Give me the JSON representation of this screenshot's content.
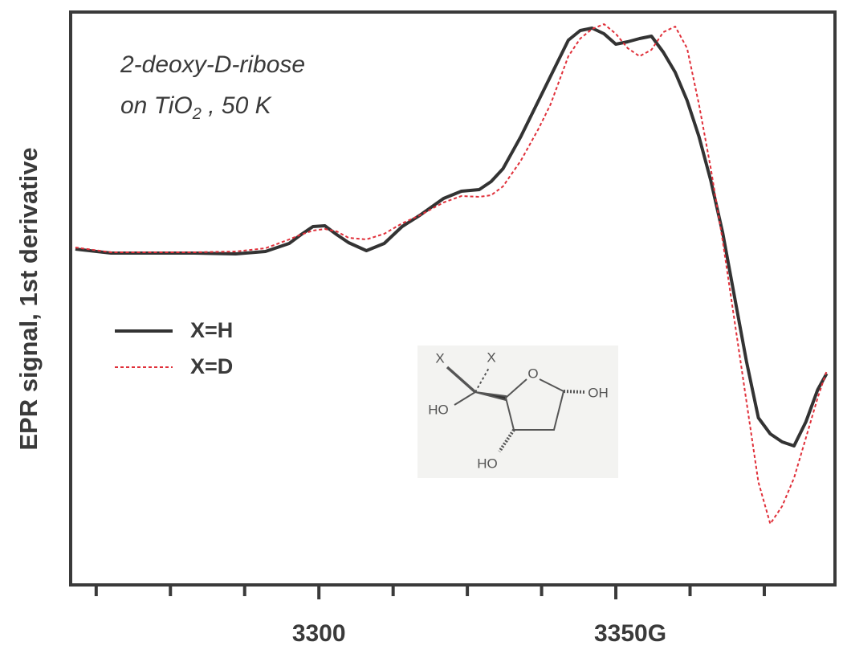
{
  "chart_data": {
    "type": "line",
    "y_label": "EPR signal, 1st derivative",
    "annotation": {
      "line1": "2-deoxy-D-ribose",
      "line2": [
        "on TiO",
        "2",
        " , 50 K"
      ]
    },
    "structure_labels": [
      "X",
      "X",
      "HO",
      "O",
      "OH",
      "HO"
    ],
    "xlim": [
      3258.2,
      3386.9
    ],
    "xticks": [
      3300,
      {
        "value": 3350,
        "label": "3350G"
      }
    ],
    "xminor_ticks": [
      3262.5,
      3275,
      3287.5,
      3312.5,
      3325,
      3337.5,
      3362.5,
      3375
    ],
    "ylim": [
      0,
      713
    ],
    "legend": "left",
    "series": [
      {
        "name": "X=H",
        "color": "#333333",
        "x": [
          3259,
          3265,
          3272,
          3279,
          3286,
          3291,
          3295,
          3297,
          3299,
          3301,
          3303,
          3305,
          3308,
          3311,
          3314,
          3317,
          3321,
          3324,
          3327,
          3329,
          3331,
          3334,
          3337,
          3339,
          3342,
          3344,
          3346,
          3348,
          3350,
          3352,
          3354,
          3356,
          3358,
          3360,
          3362,
          3364,
          3366,
          3368,
          3370,
          3372,
          3374,
          3376,
          3378,
          3380,
          3382,
          3384,
          3385.5
        ],
        "values": [
          418,
          413,
          413,
          413,
          412,
          415,
          425,
          436,
          446,
          447,
          436,
          426,
          416,
          425,
          446,
          460,
          481,
          490,
          492,
          502,
          518,
          558,
          603,
          633,
          678,
          690,
          693,
          686,
          673,
          676,
          680,
          683,
          663,
          638,
          603,
          558,
          503,
          438,
          358,
          278,
          208,
          188,
          178,
          173,
          203,
          243,
          263
        ]
      },
      {
        "name": "X=D",
        "color": "#e0303a",
        "x": [
          3259,
          3265,
          3272,
          3279,
          3286,
          3291,
          3295,
          3297,
          3299,
          3301,
          3303,
          3305,
          3308,
          3311,
          3314,
          3317,
          3321,
          3324,
          3327,
          3329,
          3331,
          3334,
          3337,
          3339,
          3342,
          3344,
          3346,
          3348,
          3350,
          3352,
          3354,
          3356,
          3358,
          3360,
          3362,
          3364,
          3366,
          3368,
          3370,
          3372,
          3374,
          3376,
          3378,
          3380,
          3382,
          3384,
          3385.5
        ],
        "values": [
          420,
          414,
          414,
          414,
          415,
          419,
          430,
          436,
          441,
          443,
          440,
          432,
          430,
          437,
          450,
          460,
          476,
          484,
          483,
          485,
          496,
          528,
          568,
          598,
          658,
          680,
          692,
          698,
          686,
          668,
          658,
          666,
          688,
          695,
          668,
          598,
          518,
          428,
          328,
          228,
          128,
          76,
          98,
          133,
          183,
          233,
          266
        ]
      }
    ]
  }
}
